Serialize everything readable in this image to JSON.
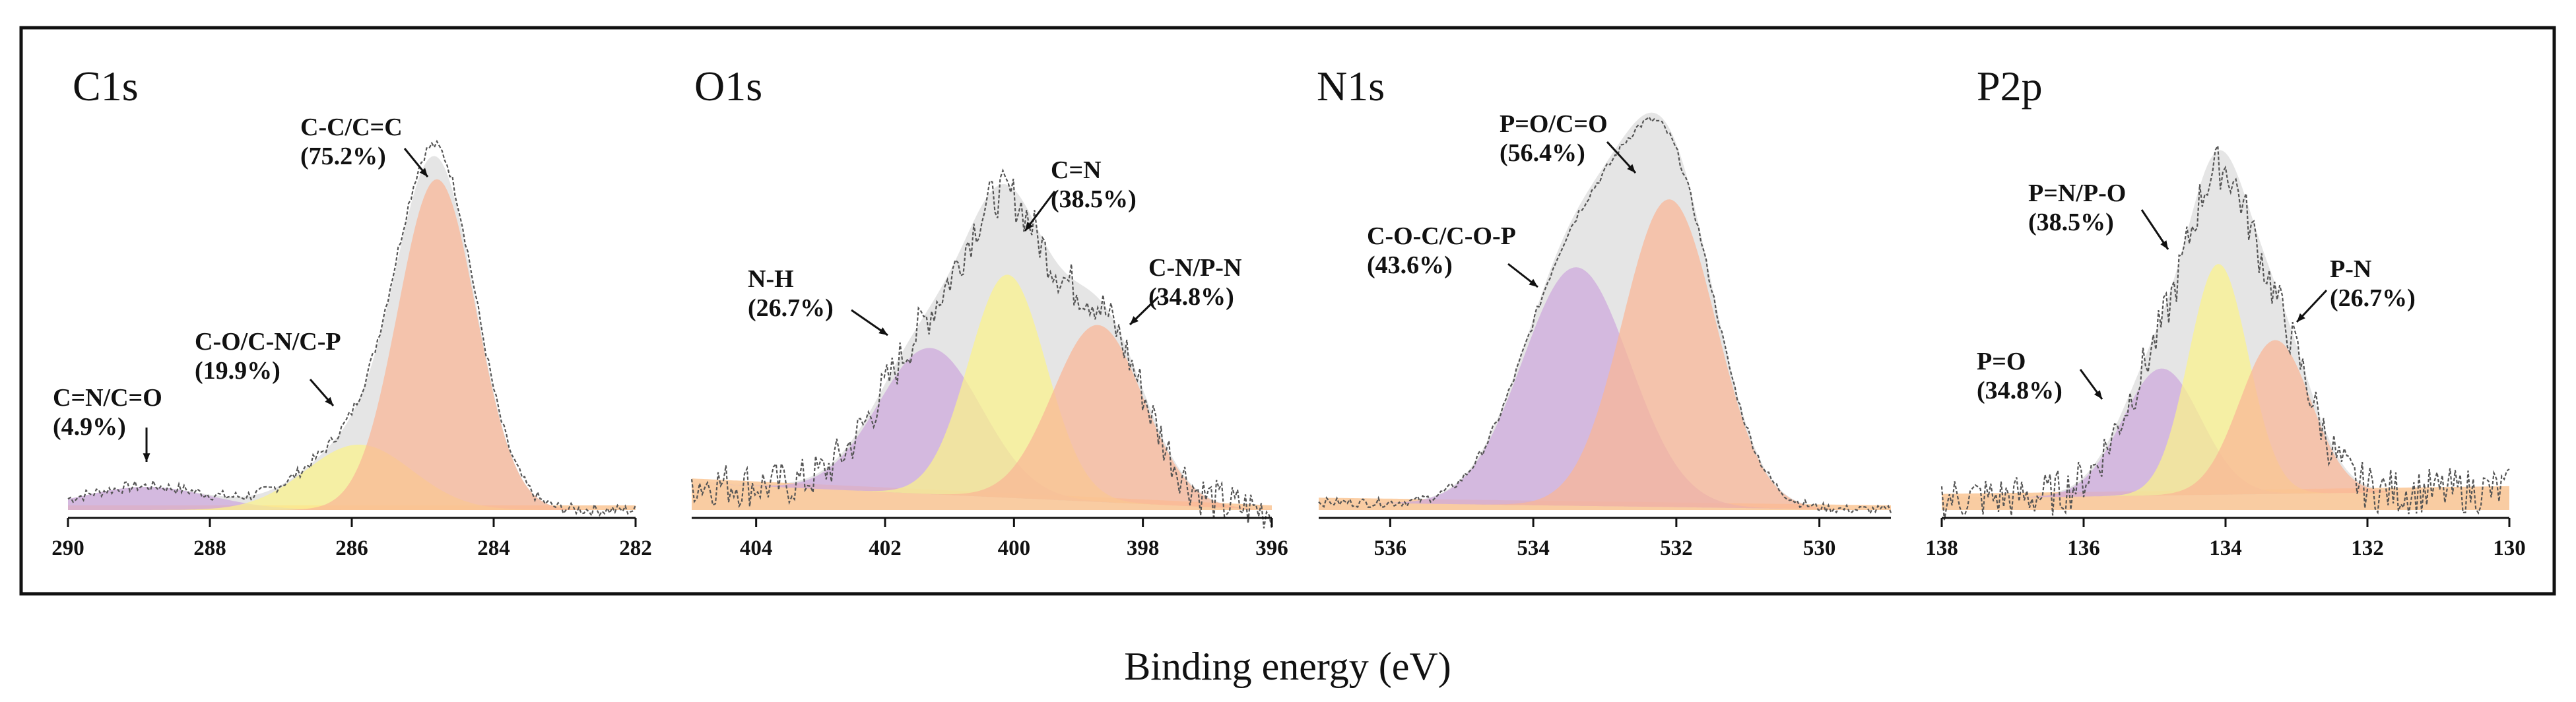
{
  "figure": {
    "xlabel": "Binding energy (eV)"
  },
  "colors": {
    "envelope": "#dcdcdc",
    "purple": "#cda8dc",
    "yellow": "#fbf38a",
    "orange": "#f9b596",
    "baseline": "#fbc99a",
    "trace": "#555555",
    "frame": "#111111"
  },
  "chart_data": [
    {
      "type": "area",
      "title": "C1s",
      "xlabel": "Binding energy (eV)",
      "xlim": [
        290,
        282
      ],
      "xticks": [
        290,
        288,
        286,
        284,
        282
      ],
      "xtick_labels": [
        "290",
        "288",
        "286",
        "284",
        "282"
      ],
      "ylim": [
        0,
        1
      ],
      "baseline": {
        "start": 0.0,
        "end": 0.0
      },
      "envelope_skew": 1.0,
      "noise": 0.015,
      "series": [
        {
          "name": "C=N/C=O",
          "center": 288.9,
          "height": 0.06,
          "width": 0.9,
          "color": "purple"
        },
        {
          "name": "C-O/C-N/C-P",
          "center": 285.9,
          "height": 0.17,
          "width": 0.75,
          "color": "yellow"
        },
        {
          "name": "C-C/C=C",
          "center": 284.8,
          "height": 0.86,
          "width": 0.55,
          "color": "orange"
        }
      ],
      "annotations": [
        {
          "label": "C=N/C=O",
          "percent": "(4.9%)",
          "x": 288.9
        },
        {
          "label": "C-O/C-N/C-P",
          "percent": "(19.9%)",
          "x": 286.0
        },
        {
          "label": "C-C/C=C",
          "percent": "(75.2%)",
          "x": 284.9
        }
      ]
    },
    {
      "type": "area",
      "title": "O1s",
      "xlabel": "Binding energy (eV)",
      "xlim": [
        405,
        396
      ],
      "xticks": [
        404,
        402,
        400,
        398,
        396
      ],
      "xtick_labels": [
        "404",
        "402",
        "400",
        "398",
        "396"
      ],
      "ylim": [
        0,
        1
      ],
      "baseline": {
        "start": 0.07,
        "end": 0.0
      },
      "envelope_skew": 1.06,
      "noise": 0.06,
      "series": [
        {
          "name": "N-H",
          "center": 401.3,
          "height": 0.38,
          "width": 0.8,
          "color": "purple"
        },
        {
          "name": "C=N",
          "center": 400.1,
          "height": 0.58,
          "width": 0.6,
          "color": "yellow"
        },
        {
          "name": "C-N/P-N",
          "center": 398.7,
          "height": 0.46,
          "width": 0.7,
          "color": "orange"
        }
      ],
      "annotations": [
        {
          "label": "N-H",
          "percent": "(26.7%)",
          "x": 401.8
        },
        {
          "label": "C=N",
          "percent": "(38.5%)",
          "x": 399.5
        },
        {
          "label": "C-N/P-N",
          "percent": "(34.8%)",
          "x": 398.0
        }
      ]
    },
    {
      "type": "area",
      "title": "N1s",
      "xlabel": "Binding energy (eV)",
      "xlim": [
        537,
        529
      ],
      "xticks": [
        536,
        534,
        532,
        530
      ],
      "xtick_labels": [
        "536",
        "534",
        "532",
        "530"
      ],
      "ylim": [
        0,
        1
      ],
      "baseline": {
        "start": 0.02,
        "end": 0.0
      },
      "envelope_skew": 1.05,
      "noise": 0.012,
      "series": [
        {
          "name": "C-O-C/C-O-P",
          "center": 533.4,
          "height": 0.62,
          "width": 0.75,
          "color": "purple"
        },
        {
          "name": "P=O/C=O",
          "center": 532.1,
          "height": 0.8,
          "width": 0.65,
          "color": "orange"
        }
      ],
      "annotations": [
        {
          "label": "C-O-C/C-O-P",
          "percent": "(43.6%)",
          "x": 533.5
        },
        {
          "label": "P=O/C=O",
          "percent": "(56.4%)",
          "x": 532.3
        }
      ]
    },
    {
      "type": "area",
      "title": "P2p",
      "xlabel": "Binding energy (eV)",
      "xlim": [
        138,
        130
      ],
      "xticks": [
        138,
        136,
        134,
        132,
        130
      ],
      "xtick_labels": [
        "138",
        "136",
        "134",
        "132",
        "130"
      ],
      "ylim": [
        0,
        1
      ],
      "baseline": {
        "start": 0.03,
        "end": 0.05
      },
      "envelope_skew": 1.08,
      "noise": 0.06,
      "series": [
        {
          "name": "P=O",
          "center": 134.9,
          "height": 0.33,
          "width": 0.55,
          "color": "purple"
        },
        {
          "name": "P=N/P-O",
          "center": 134.1,
          "height": 0.6,
          "width": 0.42,
          "color": "yellow"
        },
        {
          "name": "P-N",
          "center": 133.3,
          "height": 0.4,
          "width": 0.5,
          "color": "orange"
        }
      ],
      "annotations": [
        {
          "label": "P=O",
          "percent": "(34.8%)",
          "x": 135.6
        },
        {
          "label": "P=N/P-O",
          "percent": "(38.5%)",
          "x": 134.7
        },
        {
          "label": "P-N",
          "percent": "(26.7%)",
          "x": 132.8
        }
      ]
    }
  ]
}
